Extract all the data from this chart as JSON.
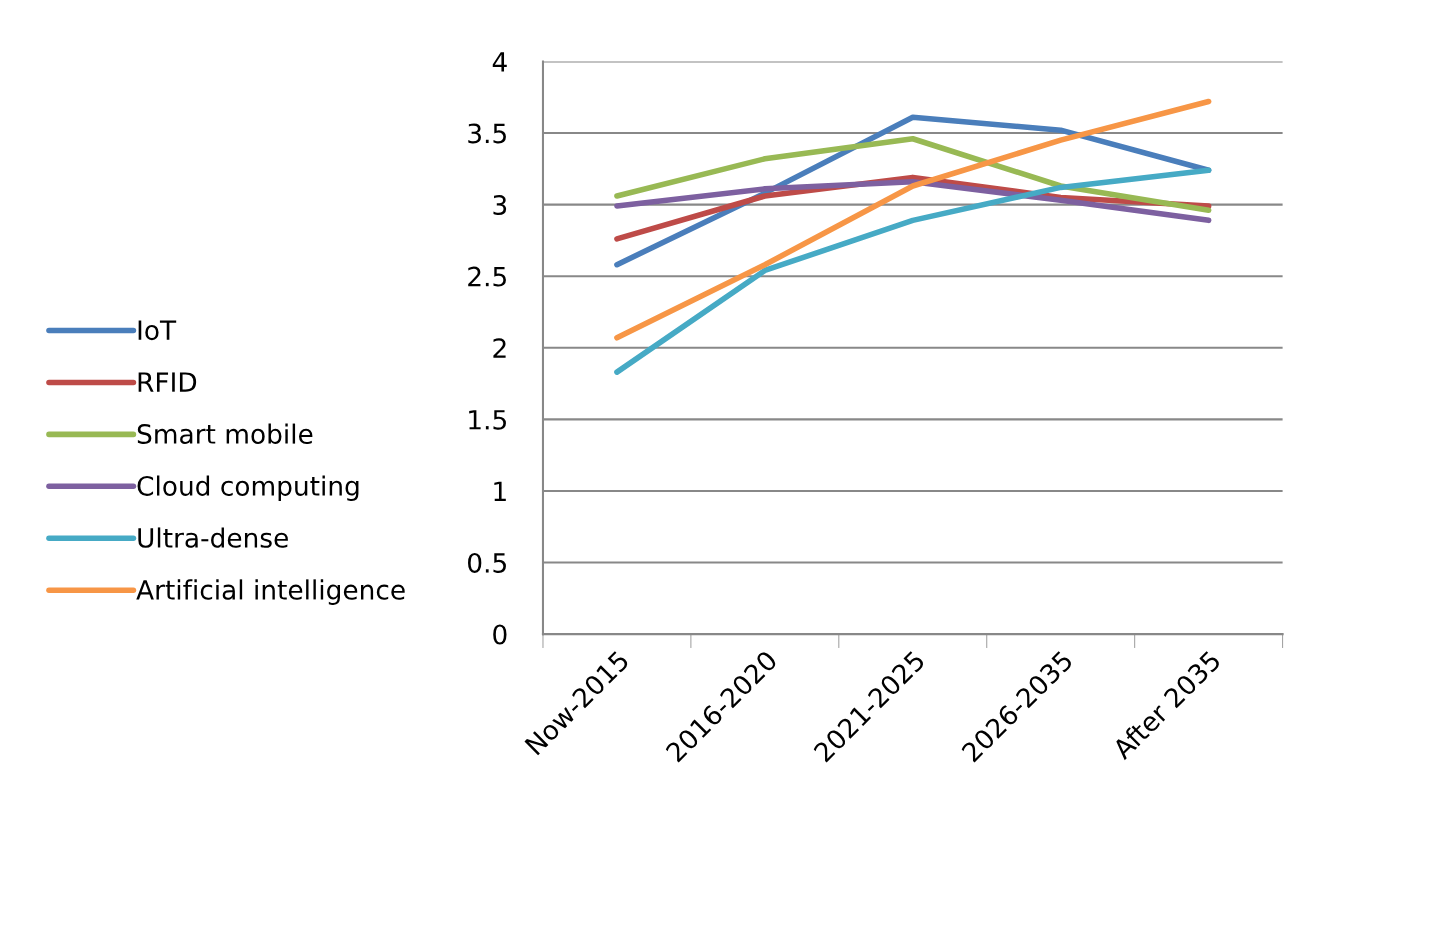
{
  "chart_data": {
    "type": "line",
    "categories": [
      "Now-2015",
      "2016-2020",
      "2021-2025",
      "2026-2035",
      "After 2035"
    ],
    "series": [
      {
        "name": "IoT",
        "color": "#4a7ebb",
        "values": [
          2.58,
          3.08,
          3.61,
          3.52,
          3.24
        ]
      },
      {
        "name": "RFID",
        "color": "#be4b48",
        "values": [
          2.76,
          3.06,
          3.19,
          3.05,
          2.99
        ]
      },
      {
        "name": "Smart mobile",
        "color": "#98b954",
        "values": [
          3.06,
          3.32,
          3.46,
          3.13,
          2.96
        ]
      },
      {
        "name": "Cloud computing",
        "color": "#7d60a0",
        "values": [
          2.99,
          3.11,
          3.16,
          3.03,
          2.89
        ]
      },
      {
        "name": "Ultra-dense",
        "color": "#46aac5",
        "values": [
          1.83,
          2.54,
          2.89,
          3.12,
          3.24
        ]
      },
      {
        "name": "Artificial intelligence",
        "color": "#f79646",
        "values": [
          2.07,
          2.58,
          3.13,
          3.45,
          3.72
        ]
      }
    ],
    "ylim": [
      0,
      4
    ],
    "yticks": [
      0,
      0.5,
      1,
      1.5,
      2,
      2.5,
      3,
      3.5,
      4
    ],
    "grid": "y",
    "legend": "left",
    "marker": "none",
    "line_style": "solid"
  }
}
